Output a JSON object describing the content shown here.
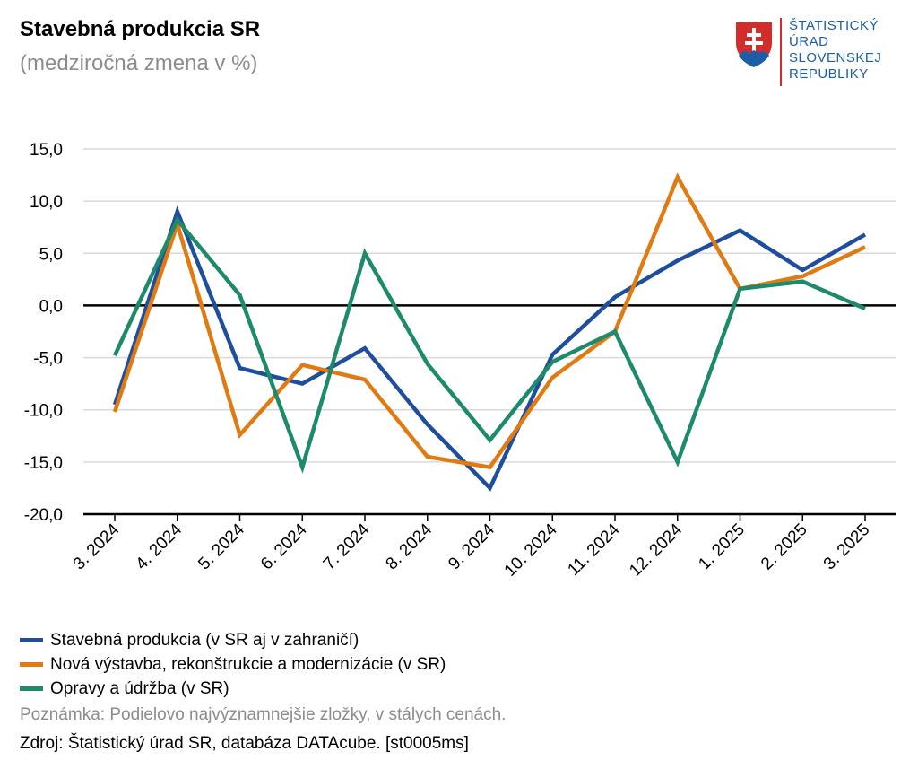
{
  "header": {
    "title": "Stavebná produkcia SR",
    "subtitle": "(medziročná zmena v %)"
  },
  "logo": {
    "lines": [
      "ŠTATISTICKÝ",
      "ÚRAD",
      "SLOVENSKEJ",
      "REPUBLIKY"
    ],
    "color": "#1a5ea8"
  },
  "chart_data": {
    "type": "line",
    "title": "Stavebná produkcia SR",
    "subtitle": "(medziročná zmena v %)",
    "xlabel": "",
    "ylabel": "",
    "ylim": [
      -20,
      15
    ],
    "yticks": [
      15,
      10,
      5,
      0,
      -5,
      -10,
      -15,
      -20
    ],
    "ytick_labels": [
      "15,0",
      "10,0",
      "5,0",
      "0,0",
      "-5,0",
      "-10,0",
      "-15,0",
      "-20,0"
    ],
    "grid": true,
    "categories": [
      "3. 2024",
      "4. 2024",
      "5. 2024",
      "6. 2024",
      "7. 2024",
      "8. 2024",
      "9. 2024",
      "10. 2024",
      "11. 2024",
      "12. 2024",
      "1. 2025",
      "2. 2025",
      "3. 2025"
    ],
    "series": [
      {
        "name": "Stavebná produkcia (v SR aj v zahraničí)",
        "color": "#1f4e9c",
        "values": [
          -9.5,
          9.0,
          -6.0,
          -7.5,
          -4.1,
          -11.4,
          -17.5,
          -4.7,
          0.8,
          4.3,
          7.2,
          3.4,
          6.8
        ]
      },
      {
        "name": "Nová výstavba, rekonštrukcie a modernizácie (v SR)",
        "color": "#e07b14",
        "values": [
          -10.2,
          7.8,
          -12.4,
          -5.7,
          -7.1,
          -14.5,
          -15.5,
          -6.9,
          -2.5,
          12.3,
          1.6,
          2.8,
          5.6
        ]
      },
      {
        "name": "Opravy a údržba (v SR)",
        "color": "#1d8a6c",
        "values": [
          -4.8,
          8.2,
          1.0,
          -15.5,
          5.0,
          -5.6,
          -12.9,
          -5.4,
          -2.5,
          -15.0,
          1.6,
          2.3,
          -0.3
        ]
      }
    ]
  },
  "legend": [
    {
      "label": "Stavebná produkcia (v SR aj v zahraničí)",
      "color": "#1f4e9c"
    },
    {
      "label": "Nová výstavba, rekonštrukcie a modernizácie (v SR)",
      "color": "#e07b14"
    },
    {
      "label": "Opravy a údržba (v SR)",
      "color": "#1d8a6c"
    }
  ],
  "footer": {
    "note": "Poznámka: Podielovo najvýznamnejšie zložky, v stálych cenách.",
    "source": "Zdroj: Štatistický úrad SR, databáza DATAcube. [st0005ms]"
  }
}
